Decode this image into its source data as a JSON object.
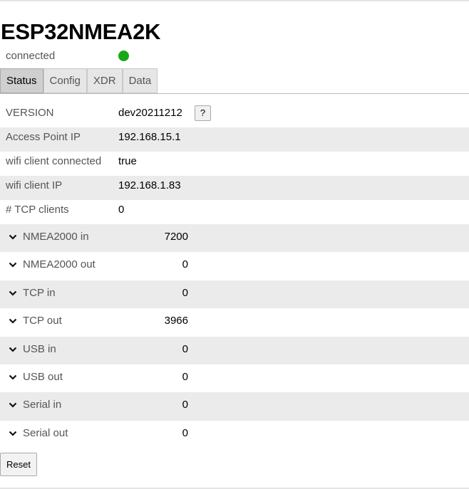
{
  "title": "ESP32NMEA2K",
  "connection": {
    "label": "connected",
    "status_color": "#17a81a"
  },
  "tabs": [
    {
      "label": "Status",
      "active": true
    },
    {
      "label": "Config"
    },
    {
      "label": "XDR"
    },
    {
      "label": "Data"
    }
  ],
  "status": [
    {
      "label": "VERSION",
      "value": "dev20211212",
      "help": "?"
    },
    {
      "label": "Access Point IP",
      "value": "192.168.15.1"
    },
    {
      "label": "wifi client connected",
      "value": "true"
    },
    {
      "label": "wifi client IP",
      "value": "192.168.1.83"
    },
    {
      "label": "# TCP clients",
      "value": "0"
    }
  ],
  "counters": [
    {
      "label": "NMEA2000 in",
      "value": "7200"
    },
    {
      "label": "NMEA2000 out",
      "value": "0"
    },
    {
      "label": "TCP in",
      "value": "0"
    },
    {
      "label": "TCP out",
      "value": "3966"
    },
    {
      "label": "USB in",
      "value": "0"
    },
    {
      "label": "USB out",
      "value": "0"
    },
    {
      "label": "Serial in",
      "value": "0"
    },
    {
      "label": "Serial out",
      "value": "0"
    }
  ],
  "reset_label": "Reset"
}
